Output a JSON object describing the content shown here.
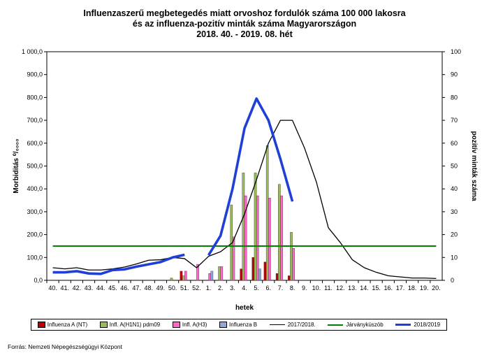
{
  "title": {
    "line1": "Influenzaszerű megbetegedés miatt orvoshoz fordulók száma 100 000 lakosra",
    "line2": "és az influenza-pozitív minták száma Magyarországon",
    "line3": "2018. 40. - 2019. 08. hét"
  },
  "source": "Forrás: Nemzeti Népegészségügyi Központ",
  "chart_data": {
    "type": "bar",
    "xlabel": "hetek",
    "ylabel": "Morbiditás ⁰/₀₀₀₀",
    "y2label": "pozitív minták száma",
    "categories": [
      "40.",
      "41.",
      "42.",
      "43.",
      "44.",
      "45.",
      "46.",
      "47.",
      "48.",
      "49.",
      "50.",
      "51.",
      "52.",
      "1.",
      "2.",
      "3.",
      "4.",
      "5.",
      "6.",
      "7.",
      "8.",
      "9.",
      "10.",
      "11.",
      "12.",
      "13.",
      "14.",
      "15.",
      "16.",
      "17.",
      "18.",
      "19.",
      "20."
    ],
    "ylim": [
      0,
      1000
    ],
    "y_ticks": [
      "0,0",
      "100,0",
      "200,0",
      "300,0",
      "400,0",
      "500,0",
      "600,0",
      "700,0",
      "800,0",
      "900,0",
      "1 000,0"
    ],
    "y2lim": [
      0,
      100
    ],
    "y2_ticks": [
      "0",
      "10",
      "20",
      "30",
      "40",
      "50",
      "60",
      "70",
      "80",
      "90",
      "100"
    ],
    "legend_position": "bottom",
    "grid": false,
    "bar_series": [
      {
        "name": "Influenza A (NT)",
        "color": "#c00000",
        "axis": "y2",
        "values": [
          0,
          0,
          0,
          0,
          0,
          0,
          0,
          0,
          0,
          0,
          0,
          4,
          0,
          0,
          0,
          0,
          5,
          10,
          8,
          3,
          2,
          null,
          null,
          null,
          null,
          null,
          null,
          null,
          null,
          null,
          null,
          null,
          null
        ]
      },
      {
        "name": "Infl. A(H1N1) pdm09",
        "color": "#9bbb59",
        "axis": "y2",
        "values": [
          0,
          0,
          0,
          0,
          0,
          0,
          0,
          0,
          0,
          0,
          1,
          2,
          0,
          0,
          6,
          33,
          47,
          47,
          59,
          42,
          21,
          null,
          null,
          null,
          null,
          null,
          null,
          null,
          null,
          null,
          null,
          null,
          null
        ]
      },
      {
        "name": "Infl. A(H3)",
        "color": "#ff66cc",
        "axis": "y2",
        "values": [
          0,
          0,
          0,
          0,
          0,
          0,
          0,
          0,
          0,
          0,
          0,
          4,
          7,
          3,
          6,
          19,
          37,
          37,
          36,
          37,
          14,
          null,
          null,
          null,
          null,
          null,
          null,
          null,
          null,
          null,
          null,
          null,
          null
        ]
      },
      {
        "name": "Influenza B",
        "color": "#8fa8d8",
        "axis": "y2",
        "values": [
          0,
          0,
          0,
          0,
          0,
          0,
          0,
          0,
          0,
          0,
          0,
          0,
          0,
          4,
          0,
          0,
          0,
          5,
          0,
          0,
          0,
          null,
          null,
          null,
          null,
          null,
          null,
          null,
          null,
          null,
          null,
          null,
          null
        ]
      }
    ],
    "line_series": [
      {
        "name": "2017/2018.",
        "color": "#000000",
        "axis": "y",
        "values": [
          55,
          50,
          55,
          45,
          45,
          50,
          58,
          72,
          88,
          90,
          100,
          95,
          55,
          105,
          125,
          165,
          290,
          440,
          600,
          700,
          700,
          580,
          430,
          230,
          165,
          90,
          55,
          35,
          20,
          15,
          10,
          10,
          8
        ]
      },
      {
        "name": "Járványküszöb",
        "color": "#008000",
        "axis": "y",
        "values": [
          150,
          150,
          150,
          150,
          150,
          150,
          150,
          150,
          150,
          150,
          150,
          150,
          150,
          150,
          150,
          150,
          150,
          150,
          150,
          150,
          150,
          150,
          150,
          150,
          150,
          150,
          150,
          150,
          150,
          150,
          150,
          150,
          150
        ]
      },
      {
        "name": "2018/2019",
        "color": "#1f3fd6",
        "axis": "y",
        "values": [
          35,
          35,
          40,
          30,
          28,
          45,
          48,
          60,
          70,
          80,
          100,
          112,
          null,
          110,
          195,
          400,
          665,
          795,
          700,
          530,
          345,
          null,
          null,
          null,
          null,
          null,
          null,
          null,
          null,
          null,
          null,
          null,
          null
        ]
      }
    ]
  }
}
